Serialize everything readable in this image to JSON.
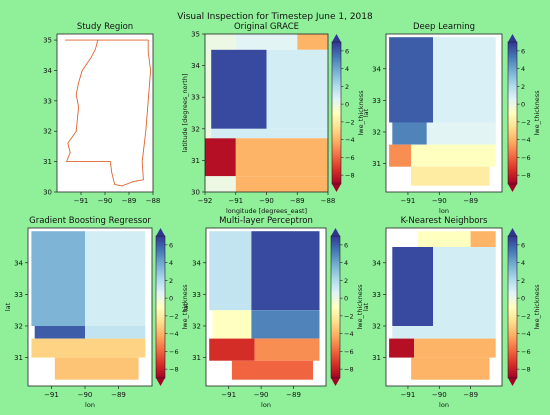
{
  "figure": {
    "suptitle": "Visual Inspection for Timestep June 1, 2018",
    "background": "#90f09a"
  },
  "colormap": {
    "name": "RdYlBu",
    "label": "lwe_thickness",
    "vmin": -9,
    "vmax": 7,
    "ticks": [
      -8,
      -6,
      -4,
      -2,
      0,
      2,
      4,
      6
    ],
    "stops": [
      "#a50026",
      "#d73027",
      "#f46d43",
      "#fdae61",
      "#fee090",
      "#ffffbf",
      "#e0f3f8",
      "#abd9e9",
      "#74add1",
      "#4575b4",
      "#313695"
    ]
  },
  "chart_data": [
    {
      "type": "map",
      "title": "Study Region",
      "xlim": [
        -92,
        -88
      ],
      "ylim": [
        30,
        35.2
      ],
      "xticks": [
        -91,
        -90,
        -89,
        -88
      ],
      "yticks": [
        30,
        31,
        32,
        33,
        34,
        35
      ],
      "xlabel": "",
      "ylabel": "",
      "outline_color": "#e0622d",
      "colorbar": false
    },
    {
      "type": "heatmap",
      "title": "Original GRACE",
      "xlim": [
        -92,
        -88
      ],
      "ylim": [
        30,
        35
      ],
      "xticks": [
        -92,
        -91,
        -90,
        -89,
        -88
      ],
      "yticks": [
        30,
        31,
        32,
        33,
        34,
        35
      ],
      "xlabel": "longitude [degrees_east]",
      "ylabel": "latitude [degrees_north]",
      "cells": [
        {
          "x0": -92,
          "x1": -91,
          "y0": 34.5,
          "y1": 35,
          "value": 0.0
        },
        {
          "x0": -91,
          "x1": -89,
          "y0": 34.5,
          "y1": 35,
          "value": 0.5
        },
        {
          "x0": -89,
          "x1": -88,
          "y0": 34.5,
          "y1": 35,
          "value": -4.0
        },
        {
          "x0": -92,
          "x1": -91.8,
          "y0": 32,
          "y1": 34.5,
          "value": 0.0
        },
        {
          "x0": -91.8,
          "x1": -90,
          "y0": 32,
          "y1": 34.5,
          "value": 6.5
        },
        {
          "x0": -90,
          "x1": -88,
          "y0": 32,
          "y1": 34.5,
          "value": 1.0
        },
        {
          "x0": -92,
          "x1": -91.8,
          "y0": 31.7,
          "y1": 32,
          "value": 0.0
        },
        {
          "x0": -91.8,
          "x1": -88,
          "y0": 31.7,
          "y1": 32,
          "value": 1.0
        },
        {
          "x0": -92,
          "x1": -91,
          "y0": 30.5,
          "y1": 31.7,
          "value": -8.5
        },
        {
          "x0": -91,
          "x1": -88,
          "y0": 30.5,
          "y1": 31.7,
          "value": -4.0
        },
        {
          "x0": -92,
          "x1": -91,
          "y0": 30,
          "y1": 30.5,
          "value": 0.0
        },
        {
          "x0": -91,
          "x1": -88,
          "y0": 30,
          "y1": 30.5,
          "value": -4.0
        }
      ],
      "colorbar": true
    },
    {
      "type": "heatmap",
      "title": "Deep Learning",
      "xlim": [
        -91.7,
        -88
      ],
      "ylim": [
        30.1,
        35.1
      ],
      "xticks": [
        -91,
        -90,
        -89
      ],
      "yticks": [
        31,
        32,
        33,
        34
      ],
      "xlabel": "lon",
      "ylabel": "lat",
      "cells": [
        {
          "x0": -91.6,
          "x1": -90.2,
          "y0": 32.3,
          "y1": 35.0,
          "value": 6.0
        },
        {
          "x0": -90.2,
          "x1": -88.2,
          "y0": 32.3,
          "y1": 35.0,
          "value": 0.8
        },
        {
          "x0": -91.5,
          "x1": -90.4,
          "y0": 31.6,
          "y1": 32.3,
          "value": 5.0
        },
        {
          "x0": -90.4,
          "x1": -88.2,
          "y0": 31.6,
          "y1": 32.3,
          "value": 0.5
        },
        {
          "x0": -91.6,
          "x1": -90.9,
          "y0": 30.9,
          "y1": 31.6,
          "value": -5.0
        },
        {
          "x0": -90.9,
          "x1": -88.2,
          "y0": 30.9,
          "y1": 31.6,
          "value": -1.0
        },
        {
          "x0": -90.9,
          "x1": -88.4,
          "y0": 30.3,
          "y1": 30.9,
          "value": -2.0
        }
      ],
      "colorbar": true
    },
    {
      "type": "heatmap",
      "title": "Gradient Boosting Regressor",
      "xlim": [
        -91.7,
        -88
      ],
      "ylim": [
        30.1,
        35.1
      ],
      "xticks": [
        -91,
        -90,
        -89
      ],
      "yticks": [
        31,
        32,
        33,
        34
      ],
      "xlabel": "lon",
      "ylabel": "lat",
      "cells": [
        {
          "x0": -91.6,
          "x1": -90.0,
          "y0": 32.0,
          "y1": 35.0,
          "value": 3.5
        },
        {
          "x0": -90.0,
          "x1": -88.2,
          "y0": 32.0,
          "y1": 35.0,
          "value": 1.0
        },
        {
          "x0": -91.5,
          "x1": -90.0,
          "y0": 31.6,
          "y1": 32.0,
          "value": 6.0
        },
        {
          "x0": -90.0,
          "x1": -88.2,
          "y0": 31.6,
          "y1": 32.0,
          "value": 1.5
        },
        {
          "x0": -91.6,
          "x1": -88.2,
          "y0": 31.0,
          "y1": 31.6,
          "value": -3.0
        },
        {
          "x0": -90.9,
          "x1": -88.4,
          "y0": 30.3,
          "y1": 31.0,
          "value": -3.5
        }
      ],
      "colorbar": true
    },
    {
      "type": "heatmap",
      "title": "Multi-layer Perceptron",
      "xlim": [
        -91.7,
        -88
      ],
      "ylim": [
        30.1,
        35.1
      ],
      "xticks": [
        -91,
        -90,
        -89
      ],
      "yticks": [
        31,
        32,
        33,
        34
      ],
      "xlabel": "lon",
      "ylabel": "lat",
      "cells": [
        {
          "x0": -91.6,
          "x1": -90.3,
          "y0": 32.5,
          "y1": 35.0,
          "value": 1.5
        },
        {
          "x0": -90.3,
          "x1": -88.2,
          "y0": 32.5,
          "y1": 35.0,
          "value": 6.5
        },
        {
          "x0": -91.5,
          "x1": -90.3,
          "y0": 31.6,
          "y1": 32.5,
          "value": -1.0
        },
        {
          "x0": -90.3,
          "x1": -88.2,
          "y0": 31.6,
          "y1": 32.5,
          "value": 5.0
        },
        {
          "x0": -91.6,
          "x1": -90.2,
          "y0": 30.9,
          "y1": 31.6,
          "value": -7.5
        },
        {
          "x0": -90.2,
          "x1": -88.2,
          "y0": 30.9,
          "y1": 31.6,
          "value": -5.0
        },
        {
          "x0": -90.9,
          "x1": -88.4,
          "y0": 30.3,
          "y1": 30.9,
          "value": -6.0
        }
      ],
      "colorbar": true
    },
    {
      "type": "heatmap",
      "title": "K-Nearest Neighbors",
      "xlim": [
        -91.7,
        -88
      ],
      "ylim": [
        30.1,
        35.1
      ],
      "xticks": [
        -91,
        -90,
        -89
      ],
      "yticks": [
        31,
        32,
        33,
        34
      ],
      "xlabel": "lon",
      "ylabel": "lat",
      "cells": [
        {
          "x0": -90.7,
          "x1": -89.0,
          "y0": 34.5,
          "y1": 35.0,
          "value": -1.0
        },
        {
          "x0": -89.0,
          "x1": -88.2,
          "y0": 34.5,
          "y1": 35.0,
          "value": -4.0
        },
        {
          "x0": -91.5,
          "x1": -90.2,
          "y0": 32.0,
          "y1": 34.5,
          "value": 6.5
        },
        {
          "x0": -90.2,
          "x1": -88.2,
          "y0": 32.0,
          "y1": 34.5,
          "value": 1.0
        },
        {
          "x0": -91.5,
          "x1": -88.2,
          "y0": 31.6,
          "y1": 32.0,
          "value": 1.0
        },
        {
          "x0": -91.6,
          "x1": -90.8,
          "y0": 31.0,
          "y1": 31.6,
          "value": -8.5
        },
        {
          "x0": -90.8,
          "x1": -88.2,
          "y0": 31.0,
          "y1": 31.6,
          "value": -4.0
        },
        {
          "x0": -90.9,
          "x1": -88.4,
          "y0": 30.3,
          "y1": 31.0,
          "value": -4.0
        }
      ],
      "colorbar": true
    }
  ]
}
